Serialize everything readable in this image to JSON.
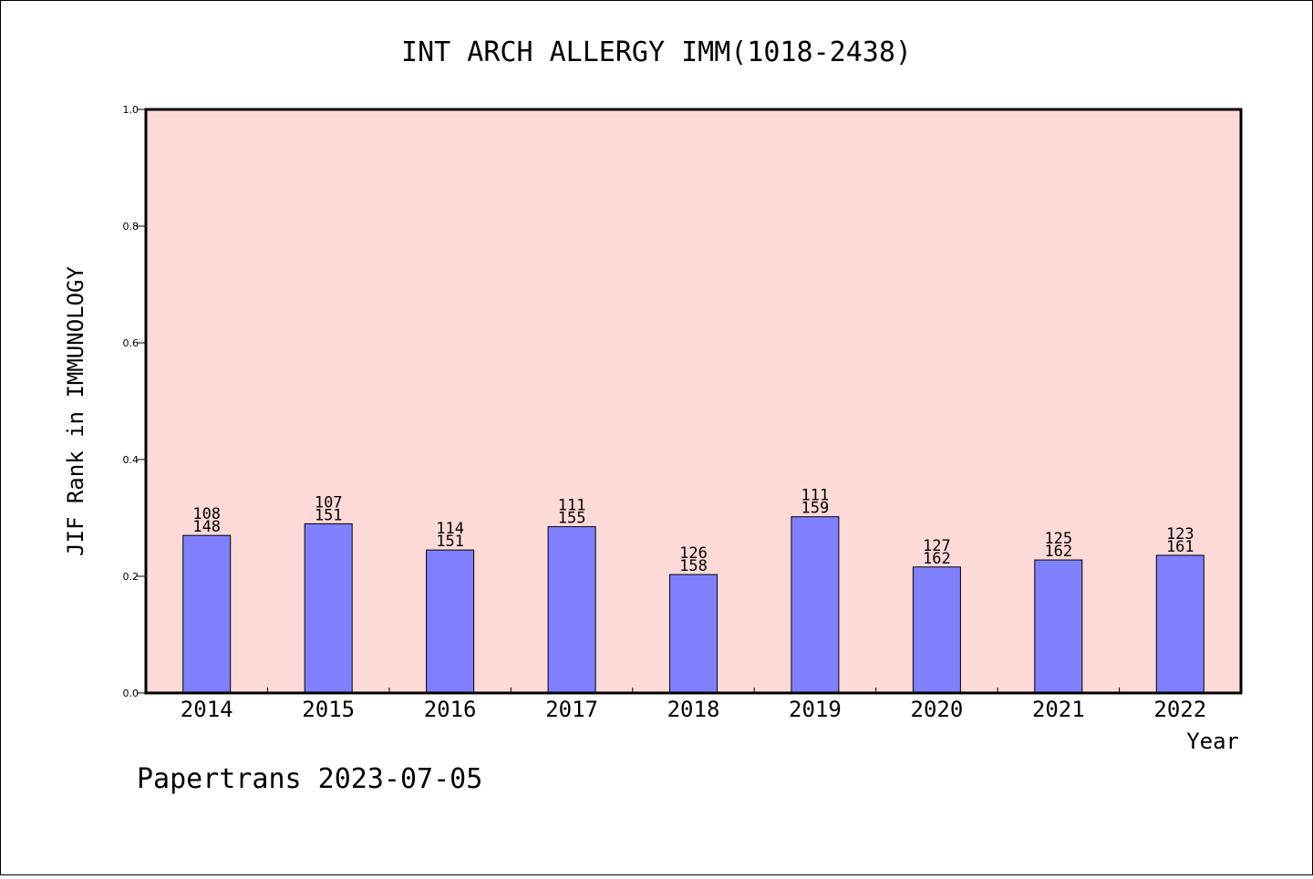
{
  "chart_data": {
    "type": "bar",
    "title": "INT ARCH ALLERGY IMM(1018-2438)",
    "xlabel": "Year",
    "ylabel": "JIF Rank in IMMUNOLOGY",
    "ylim": [
      0.0,
      1.0
    ],
    "yticks": [
      "0.0",
      "0.2",
      "0.4",
      "0.6",
      "0.8",
      "1.0"
    ],
    "categories": [
      "2014",
      "2015",
      "2016",
      "2017",
      "2018",
      "2019",
      "2020",
      "2021",
      "2022"
    ],
    "values": [
      0.27,
      0.29,
      0.245,
      0.285,
      0.203,
      0.302,
      0.216,
      0.228,
      0.236
    ],
    "ranks": [
      "108",
      "107",
      "114",
      "111",
      "126",
      "111",
      "127",
      "125",
      "123"
    ],
    "totals": [
      "148",
      "151",
      "151",
      "155",
      "158",
      "159",
      "162",
      "162",
      "161"
    ],
    "grid": false,
    "colors": {
      "bar": "#8080ff",
      "plot_background": "#fddad7",
      "bar_edge": "#000000"
    }
  },
  "footer": "Papertrans 2023-07-05"
}
